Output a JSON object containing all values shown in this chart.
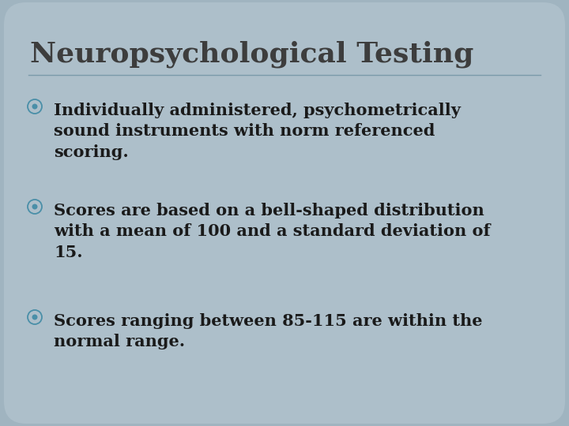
{
  "title": "Neuropsychological Testing",
  "title_fontsize": 26,
  "title_color": "#3d3d3d",
  "background_color": "#a0b4c0",
  "card_color": "#adbfca",
  "bullet_color": "#4a8fa8",
  "text_color": "#1a1a1a",
  "body_fontsize": 15,
  "bullet_items": [
    "Individually administered, psychometrically\nsound instruments with norm referenced\nscoring.",
    "Scores are based on a bell-shaped distribution\nwith a mean of 100 and a standard deviation of\n15.",
    "Scores ranging between 85-115 are within the\nnormal range."
  ],
  "divider_color": "#7a9aaa",
  "font_family": "DejaVu Serif"
}
